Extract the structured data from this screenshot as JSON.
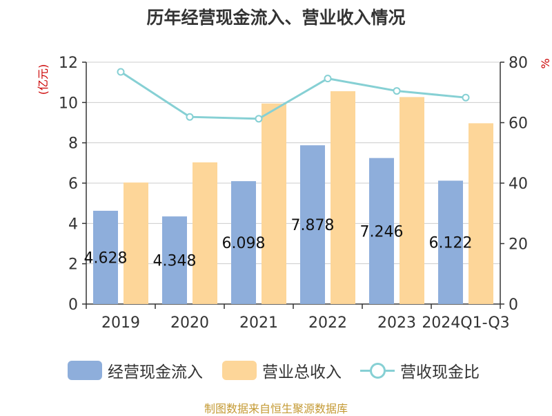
{
  "colors": {
    "cash": "#8eaedb",
    "revenue": "#fdd699",
    "ratio": "#86d0d4",
    "axis": "#333333",
    "grid": "#cccccc",
    "unit": "#cc0000"
  },
  "chart_data": {
    "type": "bar",
    "title": "历年经营现金流入、营业收入情况",
    "left_axis_unit": "(亿元)",
    "right_axis_unit": "%",
    "categories": [
      "2019",
      "2020",
      "2021",
      "2022",
      "2023",
      "2024Q1-Q3"
    ],
    "ylim_left": [
      0,
      12
    ],
    "yticks_left": [
      0,
      2,
      4,
      6,
      8,
      10,
      12
    ],
    "ylim_right": [
      0,
      80
    ],
    "yticks_right": [
      0,
      20,
      40,
      60,
      80
    ],
    "grid": true,
    "legend_position": "bottom",
    "series": [
      {
        "name": "经营现金流入",
        "type": "bar",
        "axis": "left",
        "values": [
          4.628,
          4.348,
          6.098,
          7.878,
          7.246,
          6.122
        ],
        "labels": [
          "4.628",
          "4.348",
          "6.098",
          "7.878",
          "7.246",
          "6.122"
        ]
      },
      {
        "name": "营业总收入",
        "type": "bar",
        "axis": "left",
        "values": [
          6.03,
          7.03,
          9.95,
          10.56,
          10.27,
          8.97
        ]
      },
      {
        "name": "营收现金比",
        "type": "line",
        "axis": "right",
        "values": [
          76.8,
          61.9,
          61.3,
          74.6,
          70.5,
          68.3
        ]
      }
    ]
  },
  "source": "制图数据来自恒生聚源数据库"
}
